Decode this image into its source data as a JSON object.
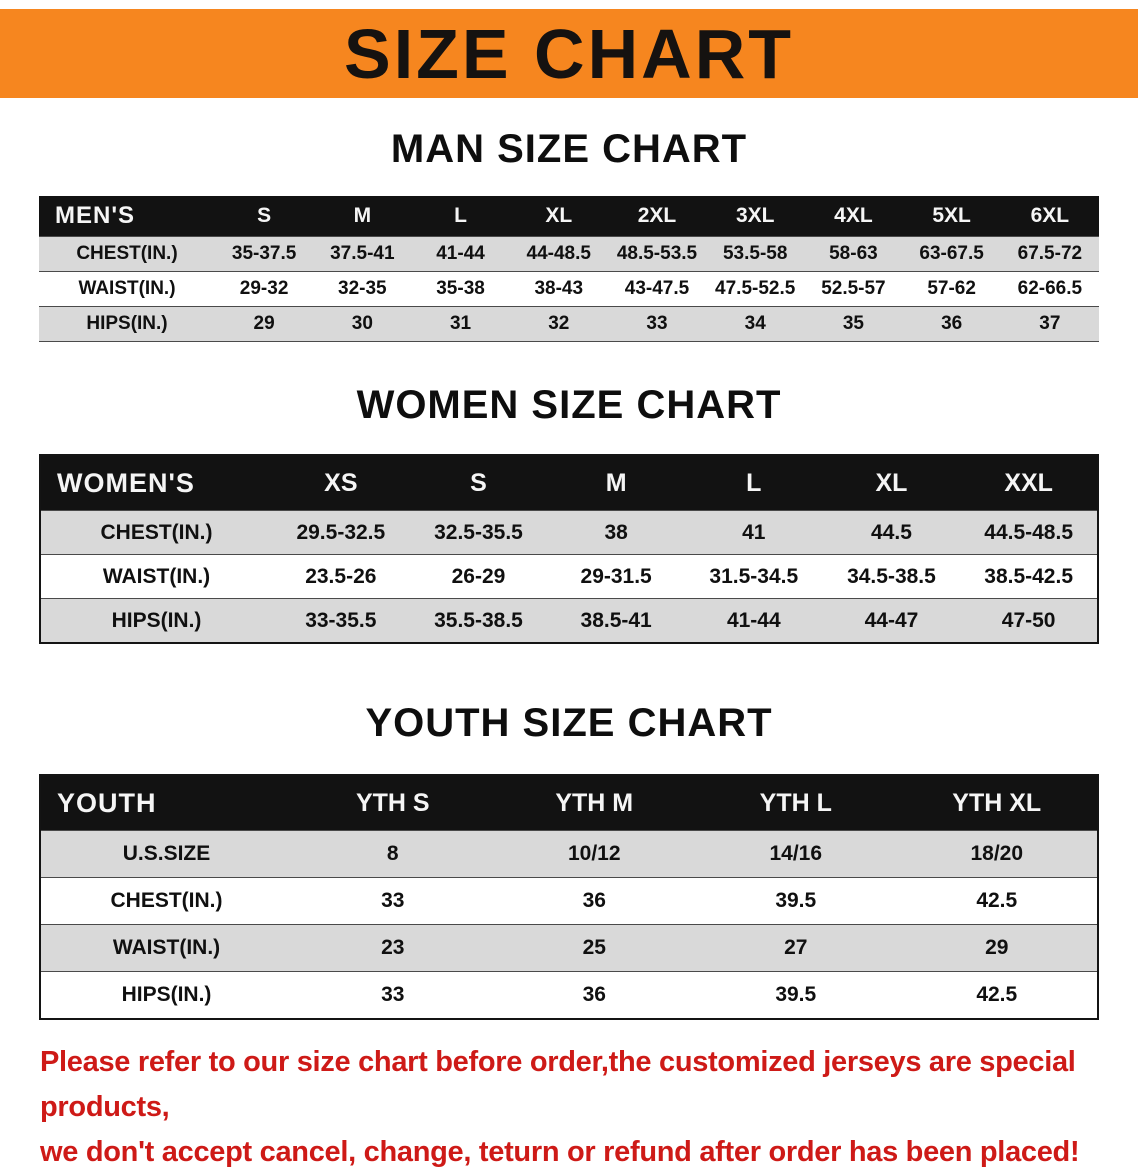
{
  "banner": {
    "title": "SIZE CHART"
  },
  "colors": {
    "banner_bg": "#F6861F",
    "table_header_bg": "#121212",
    "row_alt_gray": "#D9D9D9",
    "note_red": "#CE1A17"
  },
  "sections": [
    {
      "heading": "MAN SIZE CHART"
    },
    {
      "heading": "WOMEN SIZE CHART"
    },
    {
      "heading": "YOUTH SIZE CHART"
    }
  ],
  "chart_data": [
    {
      "type": "table",
      "title": "MAN SIZE CHART",
      "columns": [
        "MEN'S",
        "S",
        "M",
        "L",
        "XL",
        "2XL",
        "3XL",
        "4XL",
        "5XL",
        "6XL"
      ],
      "rows": [
        [
          "CHEST(IN.)",
          "35-37.5",
          "37.5-41",
          "41-44",
          "44-48.5",
          "48.5-53.5",
          "53.5-58",
          "58-63",
          "63-67.5",
          "67.5-72"
        ],
        [
          "WAIST(IN.)",
          "29-32",
          "32-35",
          "35-38",
          "38-43",
          "43-47.5",
          "47.5-52.5",
          "52.5-57",
          "57-62",
          "62-66.5"
        ],
        [
          "HIPS(IN.)",
          "29",
          "30",
          "31",
          "32",
          "33",
          "34",
          "35",
          "36",
          "37"
        ]
      ]
    },
    {
      "type": "table",
      "title": "WOMEN SIZE CHART",
      "columns": [
        "WOMEN'S",
        "XS",
        "S",
        "M",
        "L",
        "XL",
        "XXL"
      ],
      "rows": [
        [
          "CHEST(IN.)",
          "29.5-32.5",
          "32.5-35.5",
          "38",
          "41",
          "44.5",
          "44.5-48.5"
        ],
        [
          "WAIST(IN.)",
          "23.5-26",
          "26-29",
          "29-31.5",
          "31.5-34.5",
          "34.5-38.5",
          "38.5-42.5"
        ],
        [
          "HIPS(IN.)",
          "33-35.5",
          "35.5-38.5",
          "38.5-41",
          "41-44",
          "44-47",
          "47-50"
        ]
      ]
    },
    {
      "type": "table",
      "title": "YOUTH SIZE CHART",
      "columns": [
        "YOUTH",
        "YTH S",
        "YTH M",
        "YTH L",
        "YTH XL"
      ],
      "rows": [
        [
          "U.S.SIZE",
          "8",
          "10/12",
          "14/16",
          "18/20"
        ],
        [
          "CHEST(IN.)",
          "33",
          "36",
          "39.5",
          "42.5"
        ],
        [
          "WAIST(IN.)",
          "23",
          "25",
          "27",
          "29"
        ],
        [
          "HIPS(IN.)",
          "33",
          "36",
          "39.5",
          "42.5"
        ]
      ]
    }
  ],
  "footer": {
    "line1": "Please refer to our size chart before order,the customized jerseys are special products,",
    "line2": "we don't accept cancel, change, teturn or refund after order has been placed!"
  }
}
